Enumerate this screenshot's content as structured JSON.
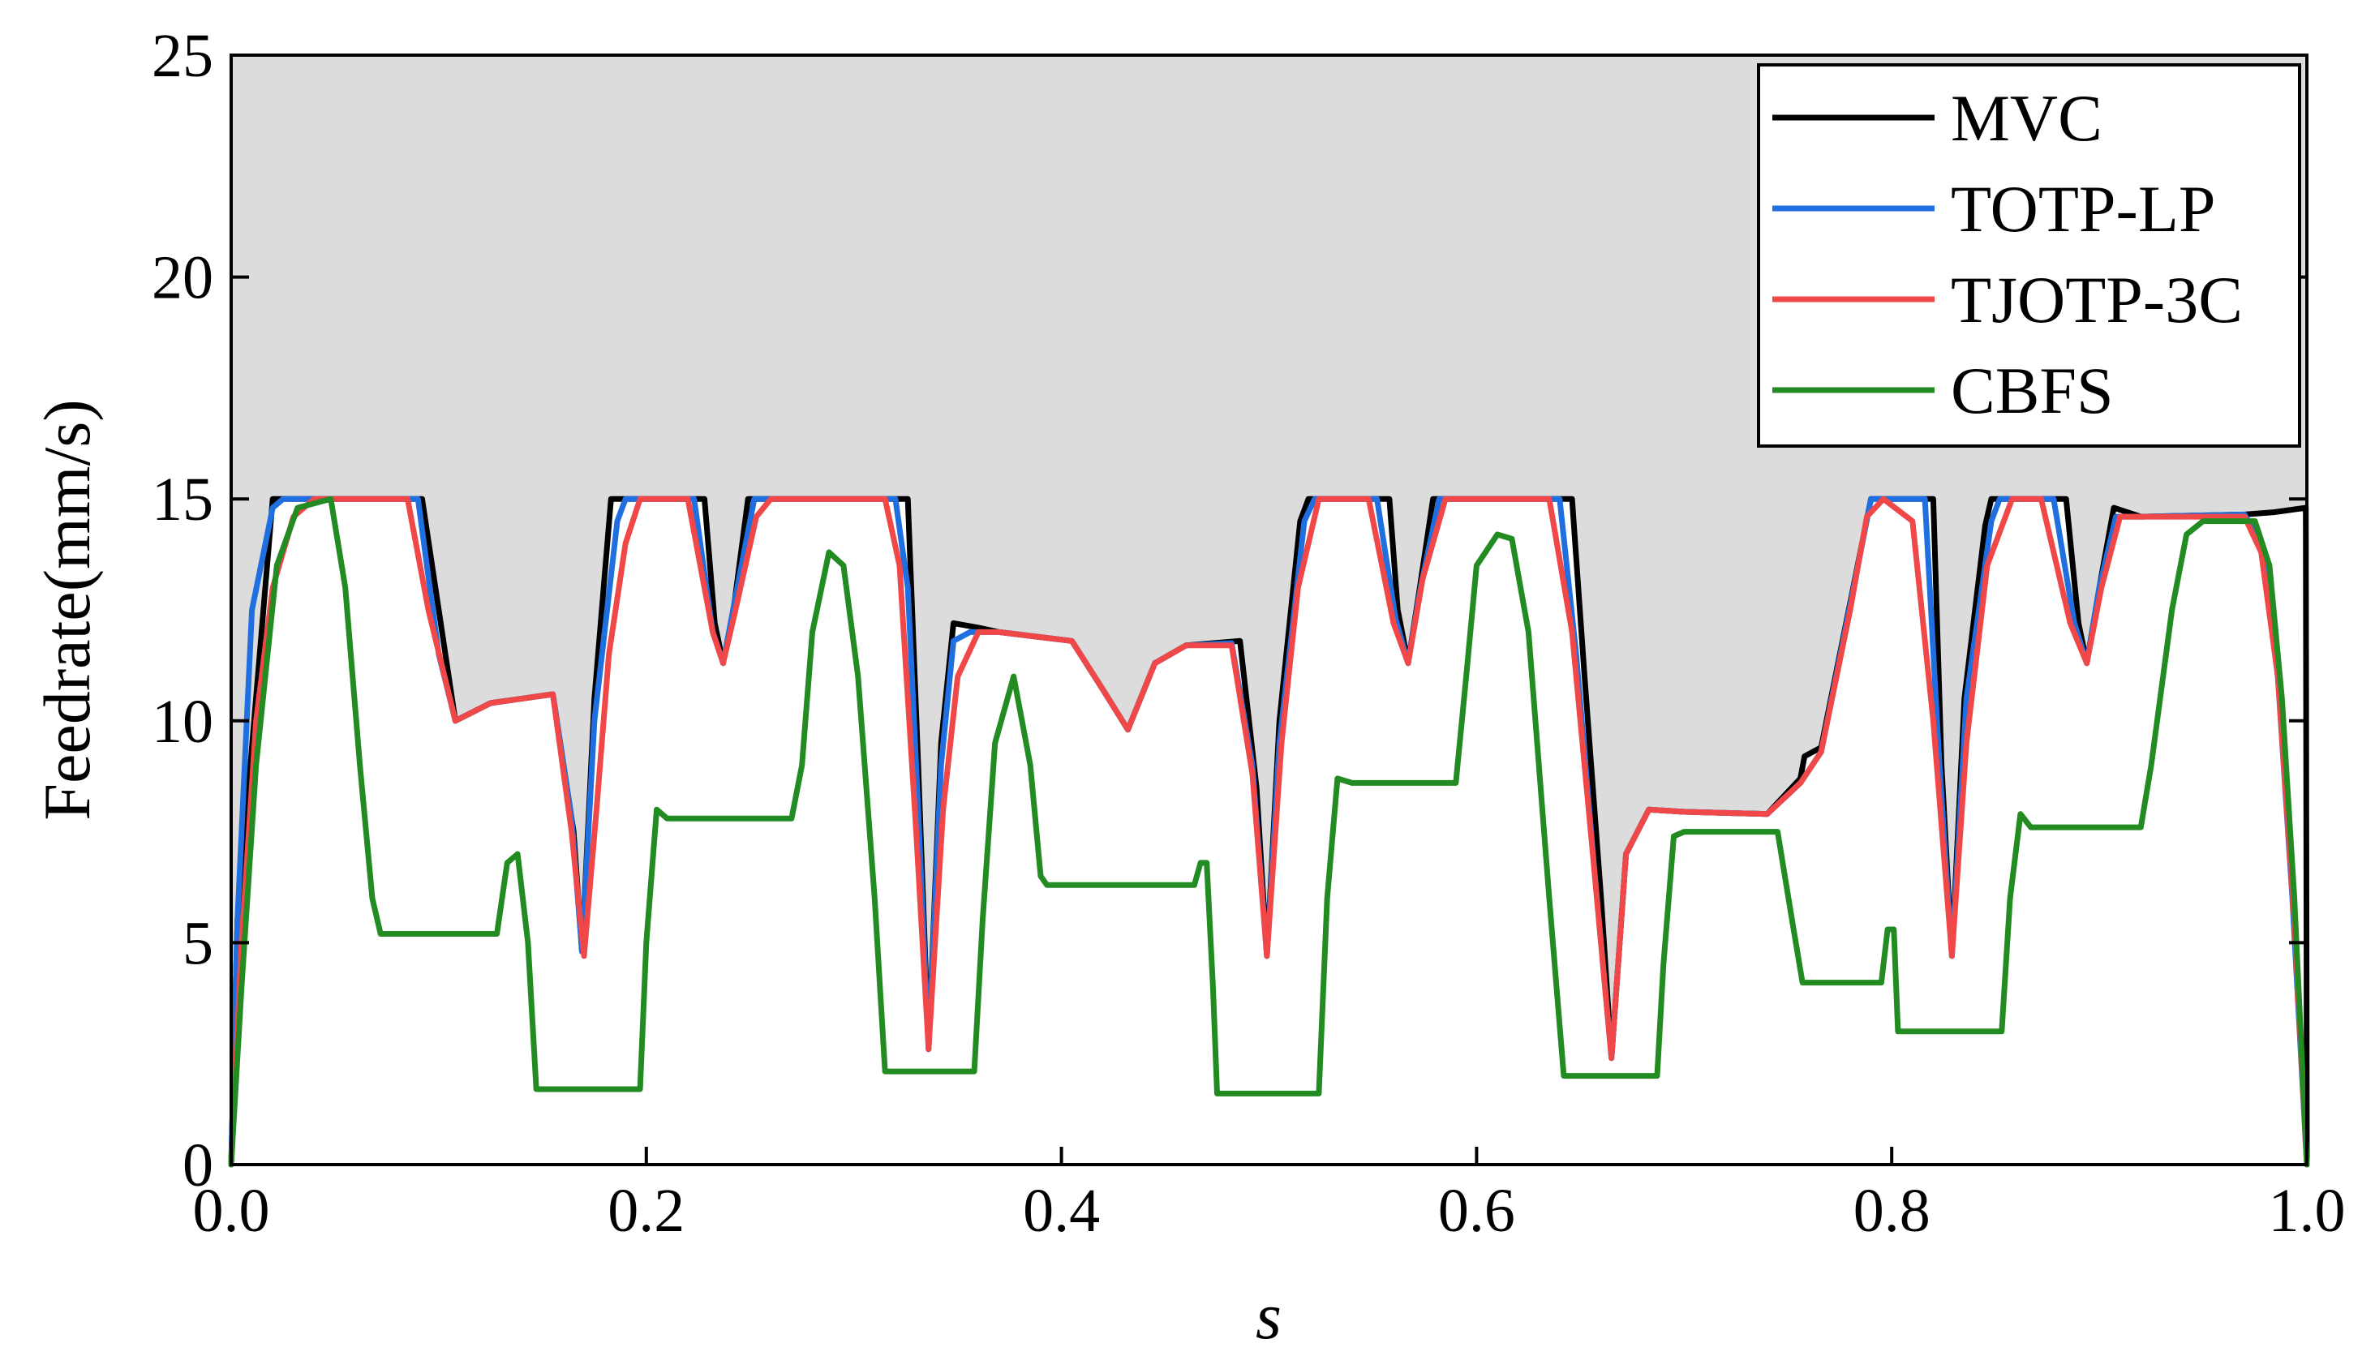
{
  "chart_data": {
    "type": "line",
    "xlabel": "s",
    "ylabel": "Feedrate(mm/s)",
    "xlim": [
      0.0,
      1.0
    ],
    "ylim": [
      0,
      25
    ],
    "x_ticks": [
      "0.0",
      "0.2",
      "0.4",
      "0.6",
      "0.8",
      "1.0"
    ],
    "y_ticks": [
      "0",
      "5",
      "10",
      "15",
      "20",
      "25"
    ],
    "grid": false,
    "legend_position": "top-right",
    "shaded_region": {
      "description_color": "#dcdcdc",
      "bound_series": "MVC"
    },
    "series": [
      {
        "name": "MVC",
        "color": "#000000",
        "points": [
          [
            0.0,
            0.0
          ],
          [
            0.003,
            5.5
          ],
          [
            0.02,
            15
          ],
          [
            0.092,
            15
          ],
          [
            0.108,
            10.0
          ],
          [
            0.125,
            10.4
          ],
          [
            0.155,
            10.6
          ],
          [
            0.165,
            7.5
          ],
          [
            0.169,
            4.8
          ],
          [
            0.175,
            10.5
          ],
          [
            0.183,
            15
          ],
          [
            0.228,
            15
          ],
          [
            0.233,
            12.2
          ],
          [
            0.237,
            11.3
          ],
          [
            0.242,
            12.5
          ],
          [
            0.249,
            15
          ],
          [
            0.326,
            15
          ],
          [
            0.331,
            9
          ],
          [
            0.336,
            2.6
          ],
          [
            0.342,
            9.5
          ],
          [
            0.348,
            12.2
          ],
          [
            0.36,
            12.1
          ],
          [
            0.37,
            12.0
          ],
          [
            0.405,
            11.8
          ],
          [
            0.42,
            10.7
          ],
          [
            0.432,
            9.8
          ],
          [
            0.445,
            11.3
          ],
          [
            0.46,
            11.7
          ],
          [
            0.486,
            11.8
          ],
          [
            0.494,
            8.5
          ],
          [
            0.499,
            4.7
          ],
          [
            0.505,
            10
          ],
          [
            0.515,
            14.5
          ],
          [
            0.519,
            15
          ],
          [
            0.558,
            15
          ],
          [
            0.562,
            12.5
          ],
          [
            0.567,
            11.3
          ],
          [
            0.572,
            12.8
          ],
          [
            0.579,
            15
          ],
          [
            0.646,
            15
          ],
          [
            0.652,
            11
          ],
          [
            0.66,
            6
          ],
          [
            0.665,
            2.4
          ],
          [
            0.672,
            7
          ],
          [
            0.683,
            8.0
          ],
          [
            0.7,
            7.95
          ],
          [
            0.74,
            7.9
          ],
          [
            0.756,
            8.7
          ],
          [
            0.758,
            9.2
          ],
          [
            0.766,
            9.4
          ],
          [
            0.79,
            15
          ],
          [
            0.82,
            15
          ],
          [
            0.824,
            9
          ],
          [
            0.829,
            4.7
          ],
          [
            0.835,
            10.5
          ],
          [
            0.845,
            14.4
          ],
          [
            0.848,
            15
          ],
          [
            0.884,
            15
          ],
          [
            0.89,
            12.2
          ],
          [
            0.894,
            11.3
          ],
          [
            0.9,
            13
          ],
          [
            0.907,
            14.8
          ],
          [
            0.92,
            14.6
          ],
          [
            0.97,
            14.65
          ],
          [
            0.984,
            14.7
          ],
          [
            0.9995,
            14.8
          ],
          [
            1.0,
            0.0
          ]
        ]
      },
      {
        "name": "TOTP-LP",
        "color": "#1f6fe0",
        "points": [
          [
            0.0,
            0.0
          ],
          [
            0.003,
            5.5
          ],
          [
            0.01,
            12.5
          ],
          [
            0.02,
            14.8
          ],
          [
            0.025,
            15
          ],
          [
            0.09,
            15
          ],
          [
            0.1,
            11.5
          ],
          [
            0.108,
            10.0
          ],
          [
            0.125,
            10.4
          ],
          [
            0.155,
            10.6
          ],
          [
            0.164,
            7.8
          ],
          [
            0.169,
            4.8
          ],
          [
            0.175,
            10
          ],
          [
            0.186,
            14.5
          ],
          [
            0.19,
            15
          ],
          [
            0.223,
            15
          ],
          [
            0.232,
            12.0
          ],
          [
            0.237,
            11.3
          ],
          [
            0.243,
            12.8
          ],
          [
            0.252,
            15
          ],
          [
            0.32,
            15
          ],
          [
            0.326,
            13
          ],
          [
            0.331,
            8
          ],
          [
            0.336,
            2.6
          ],
          [
            0.342,
            9
          ],
          [
            0.348,
            11.8
          ],
          [
            0.356,
            12.0
          ],
          [
            0.37,
            12.0
          ],
          [
            0.405,
            11.8
          ],
          [
            0.42,
            10.7
          ],
          [
            0.432,
            9.8
          ],
          [
            0.445,
            11.3
          ],
          [
            0.46,
            11.7
          ],
          [
            0.482,
            11.75
          ],
          [
            0.492,
            9
          ],
          [
            0.499,
            4.7
          ],
          [
            0.505,
            9.5
          ],
          [
            0.517,
            14.5
          ],
          [
            0.522,
            15
          ],
          [
            0.552,
            15
          ],
          [
            0.561,
            12.3
          ],
          [
            0.567,
            11.3
          ],
          [
            0.573,
            13
          ],
          [
            0.582,
            15
          ],
          [
            0.64,
            15
          ],
          [
            0.648,
            11.5
          ],
          [
            0.657,
            6.5
          ],
          [
            0.665,
            2.4
          ],
          [
            0.672,
            7
          ],
          [
            0.683,
            8.0
          ],
          [
            0.7,
            7.95
          ],
          [
            0.74,
            7.9
          ],
          [
            0.756,
            8.6
          ],
          [
            0.766,
            9.3
          ],
          [
            0.785,
            13.8
          ],
          [
            0.79,
            15
          ],
          [
            0.816,
            15
          ],
          [
            0.823,
            9
          ],
          [
            0.829,
            4.7
          ],
          [
            0.836,
            10.5
          ],
          [
            0.848,
            14.5
          ],
          [
            0.852,
            15
          ],
          [
            0.878,
            15
          ],
          [
            0.888,
            12.2
          ],
          [
            0.894,
            11.3
          ],
          [
            0.9,
            13
          ],
          [
            0.908,
            14.6
          ],
          [
            0.92,
            14.6
          ],
          [
            0.97,
            14.65
          ],
          [
            0.978,
            14.0
          ],
          [
            0.986,
            11
          ],
          [
            0.993,
            6
          ],
          [
            1.0,
            0.0
          ]
        ]
      },
      {
        "name": "TJOTP-3C",
        "color": "#f04848",
        "points": [
          [
            0.0,
            0.0
          ],
          [
            0.005,
            5
          ],
          [
            0.012,
            10
          ],
          [
            0.02,
            13
          ],
          [
            0.03,
            14.6
          ],
          [
            0.04,
            15
          ],
          [
            0.085,
            15
          ],
          [
            0.095,
            12.5
          ],
          [
            0.108,
            10.0
          ],
          [
            0.125,
            10.4
          ],
          [
            0.155,
            10.6
          ],
          [
            0.164,
            7.5
          ],
          [
            0.17,
            4.7
          ],
          [
            0.176,
            8
          ],
          [
            0.182,
            11.5
          ],
          [
            0.19,
            14
          ],
          [
            0.197,
            15
          ],
          [
            0.22,
            15
          ],
          [
            0.232,
            12.0
          ],
          [
            0.237,
            11.3
          ],
          [
            0.243,
            12.5
          ],
          [
            0.253,
            14.6
          ],
          [
            0.26,
            15
          ],
          [
            0.315,
            15
          ],
          [
            0.322,
            13.5
          ],
          [
            0.33,
            7.5
          ],
          [
            0.336,
            2.6
          ],
          [
            0.343,
            8
          ],
          [
            0.35,
            11
          ],
          [
            0.36,
            12.0
          ],
          [
            0.37,
            12.0
          ],
          [
            0.405,
            11.8
          ],
          [
            0.42,
            10.7
          ],
          [
            0.432,
            9.8
          ],
          [
            0.445,
            11.3
          ],
          [
            0.46,
            11.7
          ],
          [
            0.482,
            11.7
          ],
          [
            0.492,
            8.8
          ],
          [
            0.499,
            4.7
          ],
          [
            0.506,
            9.5
          ],
          [
            0.514,
            13
          ],
          [
            0.524,
            15
          ],
          [
            0.548,
            15
          ],
          [
            0.56,
            12.2
          ],
          [
            0.567,
            11.3
          ],
          [
            0.574,
            13.2
          ],
          [
            0.585,
            15
          ],
          [
            0.635,
            15
          ],
          [
            0.646,
            12
          ],
          [
            0.656,
            7
          ],
          [
            0.665,
            2.4
          ],
          [
            0.672,
            7
          ],
          [
            0.683,
            8.0
          ],
          [
            0.7,
            7.95
          ],
          [
            0.74,
            7.9
          ],
          [
            0.756,
            8.6
          ],
          [
            0.766,
            9.3
          ],
          [
            0.78,
            12.5
          ],
          [
            0.788,
            14.6
          ],
          [
            0.796,
            15
          ],
          [
            0.81,
            14.5
          ],
          [
            0.82,
            10
          ],
          [
            0.829,
            4.7
          ],
          [
            0.836,
            9.5
          ],
          [
            0.846,
            13.5
          ],
          [
            0.858,
            15
          ],
          [
            0.872,
            15
          ],
          [
            0.886,
            12.2
          ],
          [
            0.894,
            11.3
          ],
          [
            0.901,
            13
          ],
          [
            0.91,
            14.6
          ],
          [
            0.92,
            14.6
          ],
          [
            0.97,
            14.6
          ],
          [
            0.978,
            13.8
          ],
          [
            0.986,
            11
          ],
          [
            0.994,
            5.5
          ],
          [
            1.0,
            0.0
          ]
        ]
      },
      {
        "name": "CBFS",
        "color": "#228b22",
        "points": [
          [
            0.0,
            0.0
          ],
          [
            0.005,
            4
          ],
          [
            0.012,
            9
          ],
          [
            0.022,
            13.5
          ],
          [
            0.032,
            14.8
          ],
          [
            0.048,
            15
          ],
          [
            0.055,
            13
          ],
          [
            0.062,
            9
          ],
          [
            0.068,
            6
          ],
          [
            0.072,
            5.2
          ],
          [
            0.128,
            5.2
          ],
          [
            0.133,
            6.8
          ],
          [
            0.138,
            7.0
          ],
          [
            0.143,
            5
          ],
          [
            0.147,
            1.7
          ],
          [
            0.197,
            1.7
          ],
          [
            0.2,
            5
          ],
          [
            0.205,
            8.0
          ],
          [
            0.21,
            7.8
          ],
          [
            0.27,
            7.8
          ],
          [
            0.275,
            9
          ],
          [
            0.28,
            12
          ],
          [
            0.288,
            13.8
          ],
          [
            0.295,
            13.5
          ],
          [
            0.302,
            11
          ],
          [
            0.31,
            6
          ],
          [
            0.315,
            2.1
          ],
          [
            0.358,
            2.1
          ],
          [
            0.362,
            5.5
          ],
          [
            0.368,
            9.5
          ],
          [
            0.377,
            11.0
          ],
          [
            0.385,
            9
          ],
          [
            0.39,
            6.5
          ],
          [
            0.393,
            6.3
          ],
          [
            0.464,
            6.3
          ],
          [
            0.467,
            6.8
          ],
          [
            0.47,
            6.8
          ],
          [
            0.473,
            4
          ],
          [
            0.475,
            1.6
          ],
          [
            0.524,
            1.6
          ],
          [
            0.528,
            6
          ],
          [
            0.533,
            8.7
          ],
          [
            0.54,
            8.6
          ],
          [
            0.59,
            8.6
          ],
          [
            0.595,
            11
          ],
          [
            0.6,
            13.5
          ],
          [
            0.61,
            14.2
          ],
          [
            0.617,
            14.1
          ],
          [
            0.625,
            12
          ],
          [
            0.635,
            6
          ],
          [
            0.642,
            2.0
          ],
          [
            0.687,
            2.0
          ],
          [
            0.69,
            4.5
          ],
          [
            0.695,
            7.4
          ],
          [
            0.7,
            7.5
          ],
          [
            0.745,
            7.5
          ],
          [
            0.752,
            5.5
          ],
          [
            0.757,
            4.1
          ],
          [
            0.795,
            4.1
          ],
          [
            0.798,
            5.3
          ],
          [
            0.801,
            5.3
          ],
          [
            0.803,
            3.0
          ],
          [
            0.853,
            3.0
          ],
          [
            0.857,
            6
          ],
          [
            0.862,
            7.9
          ],
          [
            0.867,
            7.6
          ],
          [
            0.92,
            7.6
          ],
          [
            0.925,
            9
          ],
          [
            0.935,
            12.5
          ],
          [
            0.942,
            14.2
          ],
          [
            0.95,
            14.5
          ],
          [
            0.975,
            14.5
          ],
          [
            0.982,
            13.5
          ],
          [
            0.988,
            10.5
          ],
          [
            0.994,
            6
          ],
          [
            1.0,
            0.0
          ]
        ]
      }
    ]
  }
}
